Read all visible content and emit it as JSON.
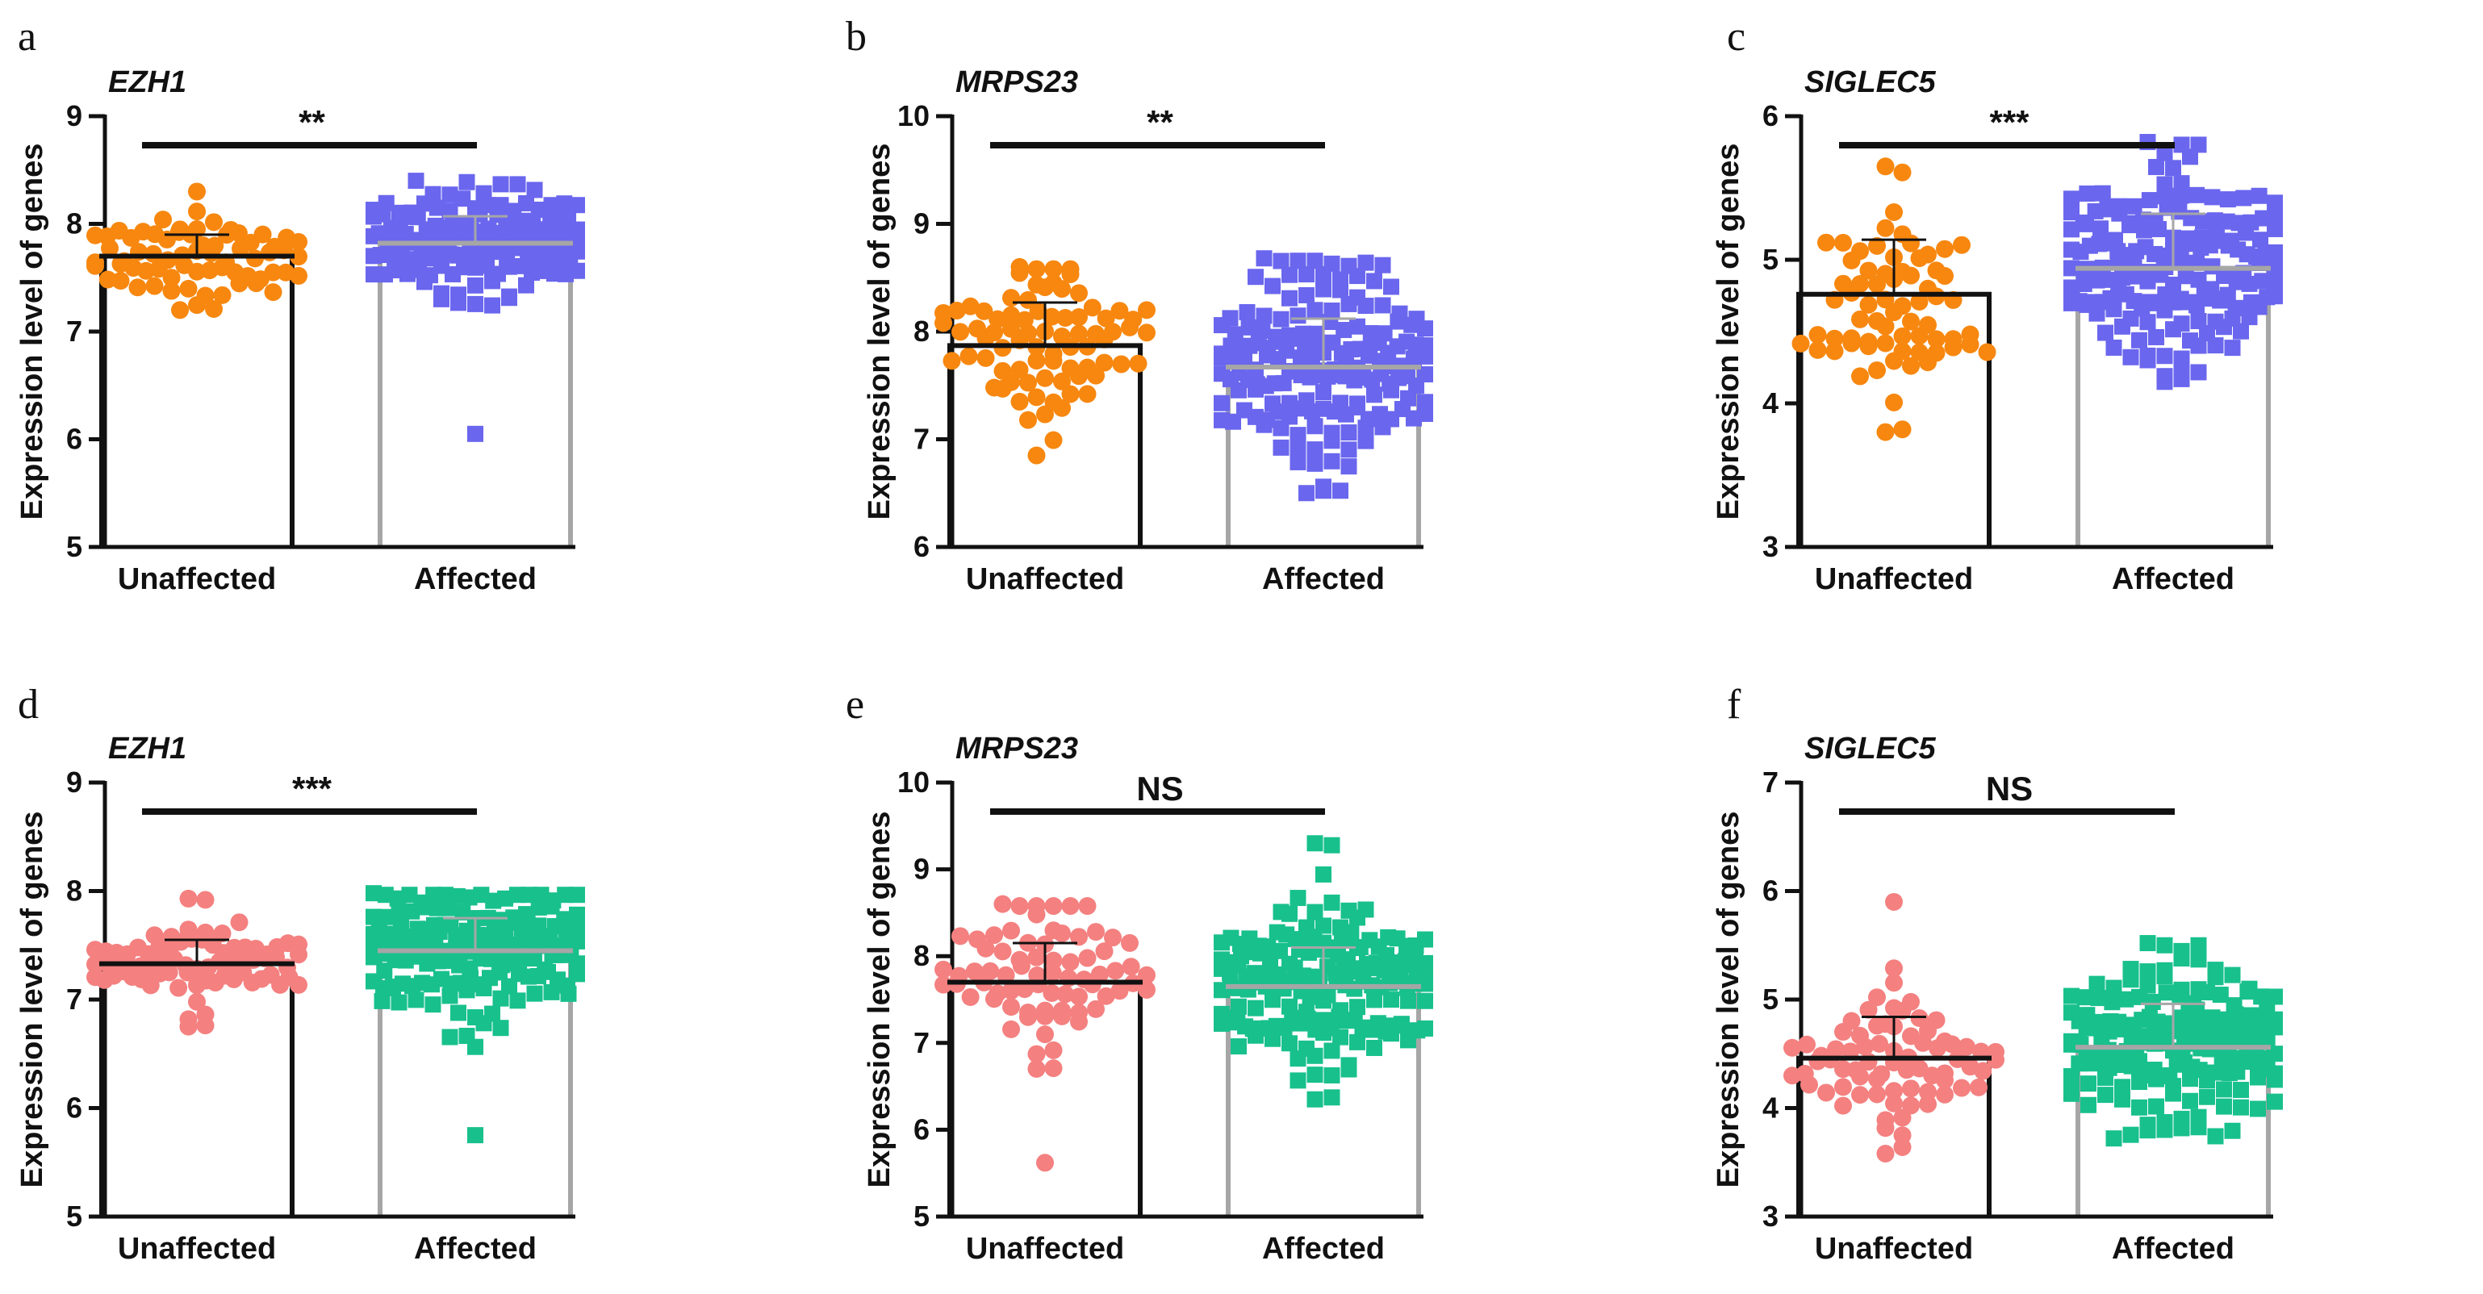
{
  "y_axis_label": "Expression level of genes",
  "categories": [
    "Unaffected",
    "Affected"
  ],
  "colors": {
    "axis": "#111111",
    "bar_unaffected": "#111111",
    "bar_affected": "#a6a6a6",
    "orange": "#f7870f",
    "purple": "#6a66ee",
    "pink": "#f48080",
    "green": "#18c08c"
  },
  "chart_data": [
    {
      "type": "bar",
      "panel": "a",
      "title": "EZH1",
      "ylim": [
        5,
        9
      ],
      "yticks": [
        5,
        6,
        7,
        8,
        9
      ],
      "categories": [
        "Unaffected",
        "Affected"
      ],
      "ylabel": "Expression level of genes",
      "series": [
        {
          "name": "Unaffected",
          "marker": "circle",
          "color": "#f7870f",
          "mean": 7.7,
          "sd": 0.2,
          "n": 70,
          "min": 7.2,
          "max": 8.3
        },
        {
          "name": "Affected",
          "marker": "square",
          "color": "#6a66ee",
          "mean": 7.82,
          "sd": 0.25,
          "n": 150,
          "min": 6.05,
          "max": 8.4
        }
      ],
      "significance": "**"
    },
    {
      "type": "bar",
      "panel": "b",
      "title": "MRPS23",
      "ylim": [
        6,
        10
      ],
      "yticks": [
        6,
        7,
        8,
        9,
        10
      ],
      "categories": [
        "Unaffected",
        "Affected"
      ],
      "ylabel": "Expression level of genes",
      "series": [
        {
          "name": "Unaffected",
          "marker": "circle",
          "color": "#f7870f",
          "mean": 7.87,
          "sd": 0.4,
          "n": 80,
          "min": 6.85,
          "max": 8.6
        },
        {
          "name": "Affected",
          "marker": "square",
          "color": "#6a66ee",
          "mean": 7.67,
          "sd": 0.45,
          "n": 170,
          "min": 6.5,
          "max": 8.68
        }
      ],
      "significance": "**"
    },
    {
      "type": "bar",
      "panel": "c",
      "title": "SIGLEC5",
      "ylim": [
        3,
        6
      ],
      "yticks": [
        3,
        4,
        5,
        6
      ],
      "categories": [
        "Unaffected",
        "Affected"
      ],
      "ylabel": "Expression level of genes",
      "series": [
        {
          "name": "Unaffected",
          "marker": "circle",
          "color": "#f7870f",
          "mean": 4.76,
          "sd": 0.38,
          "n": 70,
          "min": 3.8,
          "max": 5.65
        },
        {
          "name": "Affected",
          "marker": "square",
          "color": "#6a66ee",
          "mean": 4.94,
          "sd": 0.38,
          "n": 170,
          "min": 4.15,
          "max": 5.82
        }
      ],
      "significance": "***"
    },
    {
      "type": "bar",
      "panel": "d",
      "title": "EZH1",
      "ylim": [
        5,
        9
      ],
      "yticks": [
        5,
        6,
        7,
        8,
        9
      ],
      "categories": [
        "Unaffected",
        "Affected"
      ],
      "ylabel": "Expression level of genes",
      "series": [
        {
          "name": "Unaffected",
          "marker": "circle",
          "color": "#f48080",
          "mean": 7.33,
          "sd": 0.22,
          "n": 75,
          "min": 6.75,
          "max": 7.93
        },
        {
          "name": "Affected",
          "marker": "square",
          "color": "#18c08c",
          "mean": 7.45,
          "sd": 0.3,
          "n": 170,
          "min": 5.75,
          "max": 7.98
        }
      ],
      "significance": "***"
    },
    {
      "type": "bar",
      "panel": "e",
      "title": "MRPS23",
      "ylim": [
        5,
        10
      ],
      "yticks": [
        5,
        6,
        7,
        8,
        9,
        10
      ],
      "categories": [
        "Unaffected",
        "Affected"
      ],
      "ylabel": "Expression level of genes",
      "series": [
        {
          "name": "Unaffected",
          "marker": "circle",
          "color": "#f48080",
          "mean": 7.7,
          "sd": 0.45,
          "n": 75,
          "min": 5.62,
          "max": 8.6
        },
        {
          "name": "Affected",
          "marker": "square",
          "color": "#18c08c",
          "mean": 7.65,
          "sd": 0.45,
          "n": 170,
          "min": 6.35,
          "max": 9.3
        }
      ],
      "significance": "NS"
    },
    {
      "type": "bar",
      "panel": "f",
      "title": "SIGLEC5",
      "ylim": [
        3,
        7
      ],
      "yticks": [
        3,
        4,
        5,
        6,
        7
      ],
      "categories": [
        "Unaffected",
        "Affected"
      ],
      "ylabel": "Expression level of genes",
      "series": [
        {
          "name": "Unaffected",
          "marker": "circle",
          "color": "#f48080",
          "mean": 4.46,
          "sd": 0.38,
          "n": 75,
          "min": 3.58,
          "max": 5.9
        },
        {
          "name": "Affected",
          "marker": "square",
          "color": "#18c08c",
          "mean": 4.56,
          "sd": 0.4,
          "n": 180,
          "min": 3.72,
          "max": 5.52
        }
      ],
      "significance": "NS"
    }
  ]
}
